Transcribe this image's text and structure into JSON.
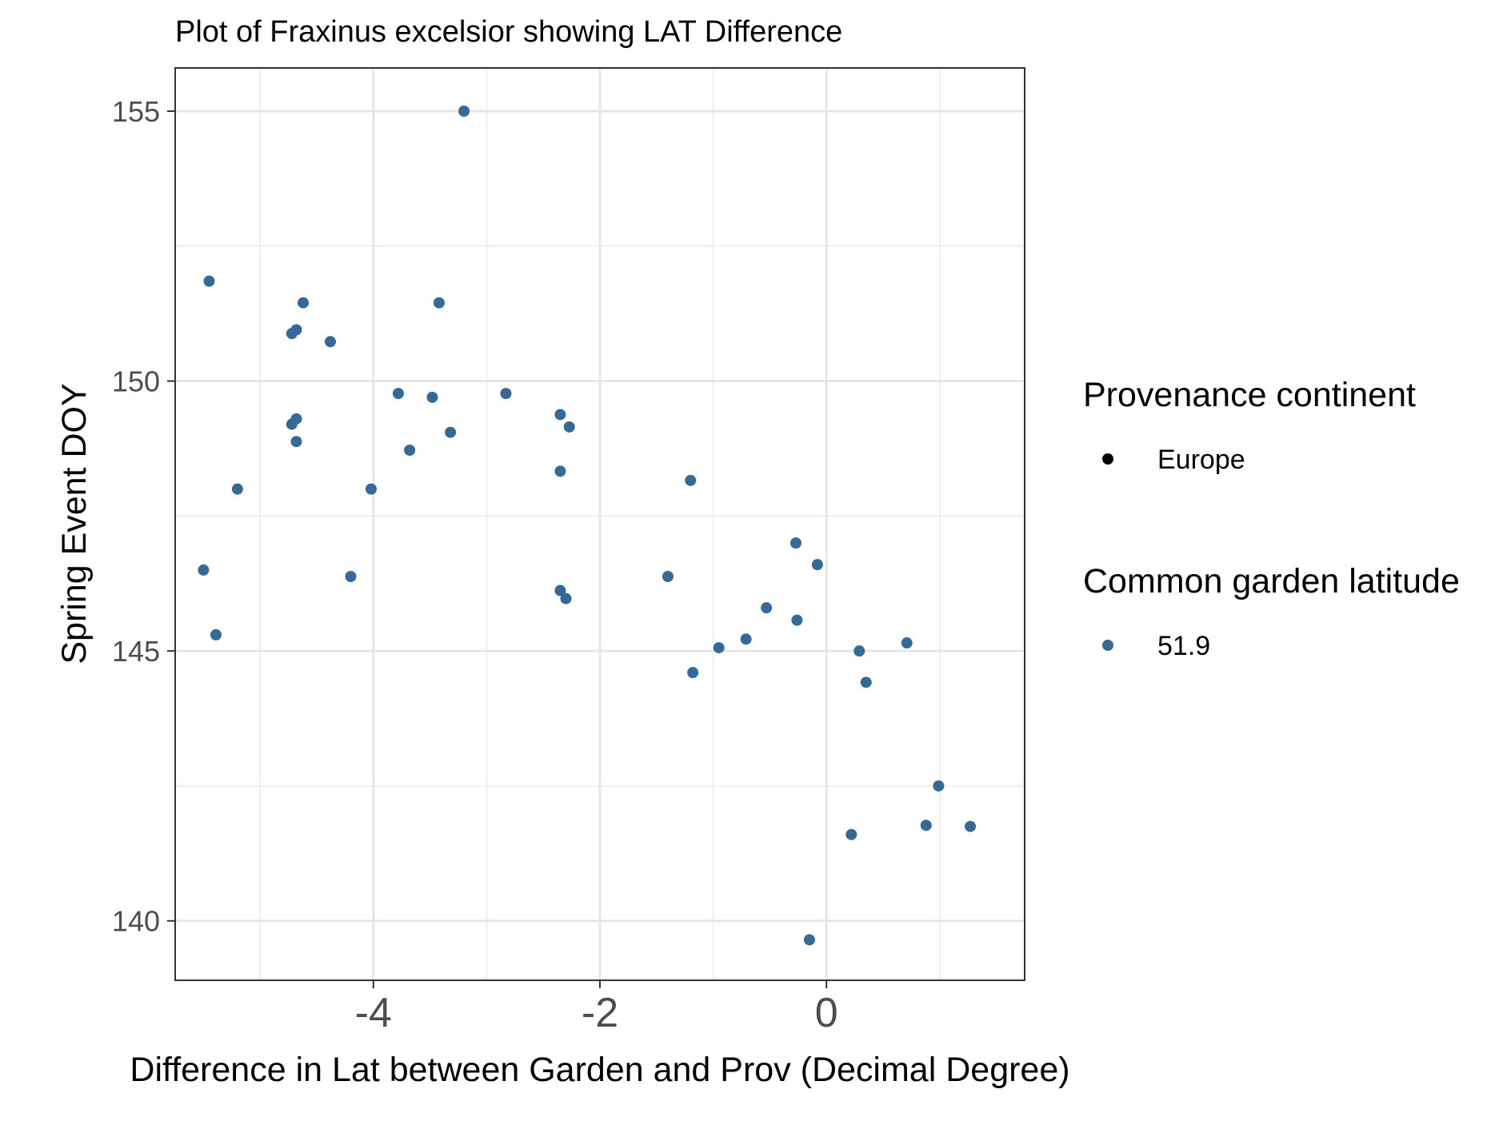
{
  "chart_data": {
    "type": "scatter",
    "title": "Plot of Fraxinus excelsior showing LAT Difference",
    "xlabel": "Difference in Lat between Garden and Prov (Decimal Degree)",
    "ylabel": "Spring Event DOY",
    "xlim": [
      -5.75,
      1.75
    ],
    "ylim": [
      138.9,
      155.8
    ],
    "x_ticks": [
      -4,
      -2,
      0
    ],
    "x_tick_labels": [
      "-4",
      "-2",
      "0"
    ],
    "y_ticks": [
      140,
      145,
      150,
      155
    ],
    "y_tick_labels": [
      "140",
      "145",
      "150",
      "155"
    ],
    "x_minor_gridlines": [
      -5,
      -3,
      -1,
      1
    ],
    "y_minor_gridlines": [
      142.5,
      147.5,
      152.5
    ],
    "grid": true,
    "point_color": "#336a98",
    "legend": {
      "placement": "right",
      "groups": [
        {
          "title": "Provenance continent",
          "entries": [
            {
              "label": "Europe",
              "color": "#000000"
            }
          ]
        },
        {
          "title": "Common garden latitude",
          "entries": [
            {
              "label": "51.9",
              "color": "#336a98"
            }
          ]
        }
      ]
    },
    "series": [
      {
        "x": [
          -3.2,
          -5.45,
          -4.62,
          -3.42,
          -4.68,
          -4.72,
          -4.38,
          -3.78,
          -3.48,
          -2.83,
          -4.68,
          -4.72,
          -2.35,
          -2.27,
          -3.32,
          -4.68,
          -3.68,
          -2.35,
          -5.2,
          -4.02,
          -1.2,
          -5.5,
          -4.2,
          -1.4,
          -2.35,
          -2.3,
          -0.27,
          -0.08,
          -0.53,
          -0.26,
          -0.71,
          0.29,
          0.71,
          -0.95,
          -1.18,
          0.35,
          0.99,
          0.88,
          1.27,
          0.22,
          -0.15,
          -5.39
        ],
        "y": [
          155.0,
          151.85,
          151.45,
          151.45,
          150.95,
          150.88,
          150.73,
          149.77,
          149.7,
          149.77,
          149.3,
          149.2,
          149.38,
          149.15,
          149.05,
          148.88,
          148.72,
          148.33,
          148.0,
          148.0,
          148.16,
          146.5,
          146.38,
          146.38,
          146.12,
          145.97,
          147.0,
          146.6,
          145.8,
          145.57,
          145.22,
          145.0,
          145.15,
          145.06,
          144.6,
          144.42,
          142.5,
          141.77,
          141.75,
          141.6,
          139.65,
          145.3
        ]
      }
    ]
  }
}
